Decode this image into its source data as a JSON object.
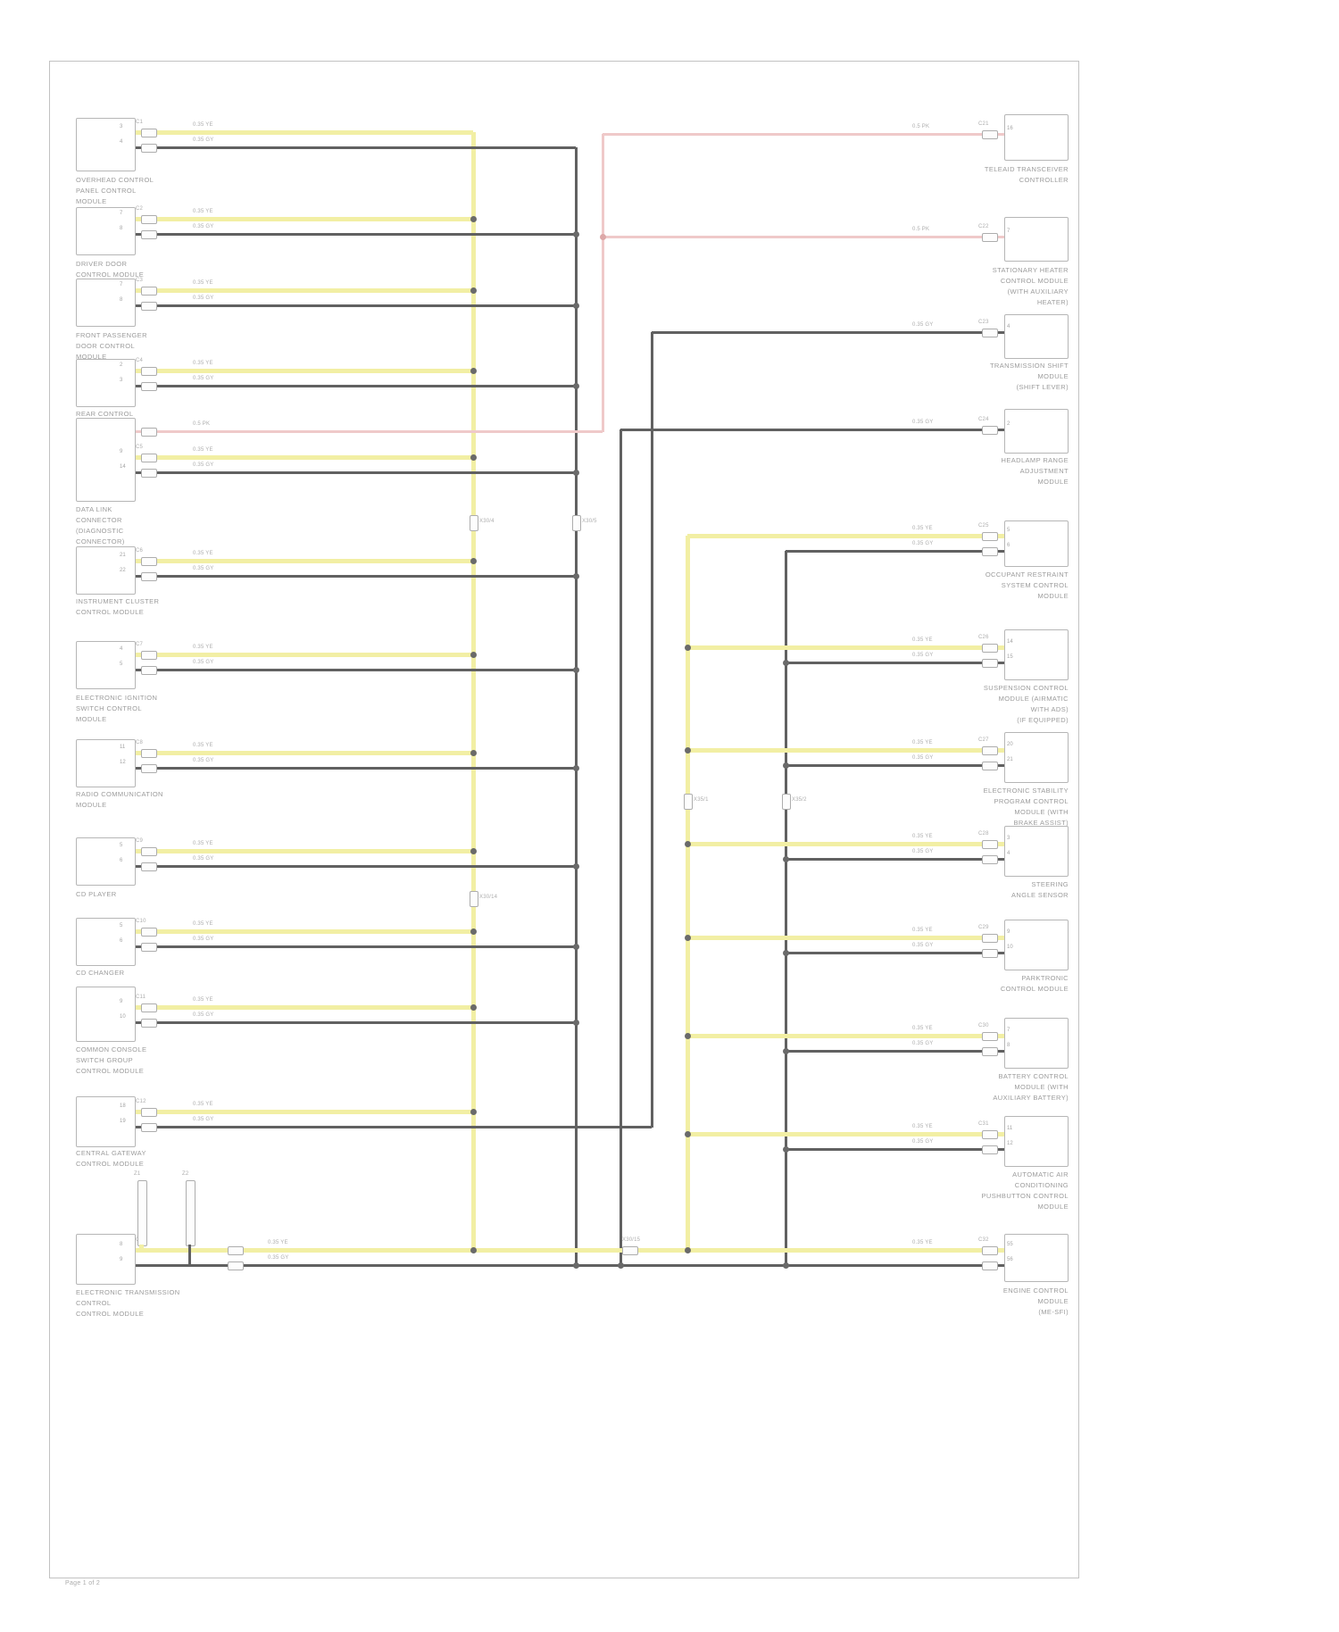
{
  "document": {
    "footer": "Page 1 of 2"
  },
  "colors": {
    "wire_high": "#f2efa4",
    "wire_low": "#616161",
    "wire_k": "#efc9c9",
    "frame": "#c2c2c2",
    "text": "#9b9b9b"
  },
  "wire_labels": {
    "yellow": "0.35 YE",
    "dark": "0.35 GY",
    "pink": "0.5 PK"
  },
  "bus_connectors": [
    "X30/4",
    "X30/5",
    "X30/14",
    "X35/1",
    "X35/2",
    "X30/15"
  ],
  "star_points": [
    "Z1",
    "Z2"
  ],
  "left_modules": [
    {
      "label": "OVERHEAD CONTROL\nPANEL CONTROL\nMODULE",
      "conn": "C1",
      "pin_top": "3",
      "pin_bottom": "4"
    },
    {
      "label": "DRIVER DOOR\nCONTROL MODULE",
      "conn": "C2",
      "pin_top": "7",
      "pin_bottom": "8"
    },
    {
      "label": "FRONT PASSENGER\nDOOR CONTROL\nMODULE",
      "conn": "C3",
      "pin_top": "7",
      "pin_bottom": "8"
    },
    {
      "label": "REAR CONTROL\nPANEL",
      "conn": "C4",
      "pin_top": "2",
      "pin_bottom": "3"
    },
    {
      "label": "DATA LINK\nCONNECTOR\n(DIAGNOSTIC\nCONNECTOR)",
      "conn": "C5",
      "pin_top": "9",
      "pin_bottom": "14",
      "pin_k": "1"
    },
    {
      "label": "INSTRUMENT CLUSTER\nCONTROL MODULE",
      "conn": "C6",
      "pin_top": "21",
      "pin_bottom": "22"
    },
    {
      "label": "ELECTRONIC IGNITION\nSWITCH CONTROL\nMODULE",
      "conn": "C7",
      "pin_top": "4",
      "pin_bottom": "5"
    },
    {
      "label": "RADIO COMMUNICATION\nMODULE",
      "conn": "C8",
      "pin_top": "11",
      "pin_bottom": "12"
    },
    {
      "label": "CD PLAYER",
      "conn": "C9",
      "pin_top": "5",
      "pin_bottom": "6"
    },
    {
      "label": "CD CHANGER",
      "conn": "C10",
      "pin_top": "5",
      "pin_bottom": "6"
    },
    {
      "label": "COMMON CONSOLE\nSWITCH GROUP\nCONTROL MODULE",
      "conn": "C11",
      "pin_top": "9",
      "pin_bottom": "10"
    },
    {
      "label": "CENTRAL GATEWAY\nCONTROL MODULE",
      "conn": "C12",
      "pin_top": "18",
      "pin_bottom": "19"
    },
    {
      "label": "ELECTRONIC TRANSMISSION\nCONTROL\nCONTROL MODULE",
      "conn": "C13",
      "pin_top": "8",
      "pin_bottom": "9"
    }
  ],
  "right_modules": [
    {
      "label": "TELEAID TRANSCEIVER\nCONTROLLER",
      "conn": "C21",
      "pin_top": "16"
    },
    {
      "label": "STATIONARY HEATER\nCONTROL MODULE\n(WITH AUXILIARY\nHEATER)",
      "conn": "C22",
      "pin_top": "7"
    },
    {
      "label": "TRANSMISSION SHIFT\nMODULE\n(SHIFT LEVER)",
      "conn": "C23",
      "pin_top": "4"
    },
    {
      "label": "HEADLAMP RANGE\nADJUSTMENT\nMODULE",
      "conn": "C24",
      "pin_top": "2"
    },
    {
      "label": "OCCUPANT RESTRAINT\nSYSTEM CONTROL\nMODULE",
      "conn": "C25",
      "pin_top": "5",
      "pin_bottom": "6"
    },
    {
      "label": "SUSPENSION CONTROL\nMODULE (AIRMATIC\nWITH ADS)\n(IF EQUIPPED)",
      "conn": "C26",
      "pin_top": "14",
      "pin_bottom": "15"
    },
    {
      "label": "ELECTRONIC STABILITY\nPROGRAM CONTROL\nMODULE (WITH\nBRAKE ASSIST)",
      "conn": "C27",
      "pin_top": "20",
      "pin_bottom": "21"
    },
    {
      "label": "STEERING\nANGLE SENSOR",
      "conn": "C28",
      "pin_top": "3",
      "pin_bottom": "4"
    },
    {
      "label": "PARKTRONIC\nCONTROL MODULE",
      "conn": "C29",
      "pin_top": "9",
      "pin_bottom": "10"
    },
    {
      "label": "BATTERY CONTROL\nMODULE (WITH\nAUXILIARY BATTERY)",
      "conn": "C30",
      "pin_top": "7",
      "pin_bottom": "8"
    },
    {
      "label": "AUTOMATIC AIR\nCONDITIONING\nPUSHBUTTON CONTROL\nMODULE",
      "conn": "C31",
      "pin_top": "11",
      "pin_bottom": "12"
    },
    {
      "label": "ENGINE CONTROL\nMODULE\n(ME-SFI)",
      "conn": "C32",
      "pin_top": "55",
      "pin_bottom": "56"
    }
  ]
}
